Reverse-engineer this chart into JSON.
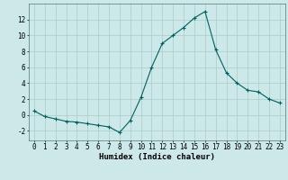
{
  "x": [
    0,
    1,
    2,
    3,
    4,
    5,
    6,
    7,
    8,
    9,
    10,
    11,
    12,
    13,
    14,
    15,
    16,
    17,
    18,
    19,
    20,
    21,
    22,
    23
  ],
  "y": [
    0.5,
    -0.2,
    -0.5,
    -0.8,
    -0.9,
    -1.1,
    -1.3,
    -1.5,
    -2.2,
    -0.7,
    2.2,
    6.0,
    9.0,
    10.0,
    11.0,
    12.2,
    13.0,
    8.2,
    5.3,
    4.0,
    3.1,
    2.9,
    2.0,
    1.5
  ],
  "line_color": "#006060",
  "marker": "+",
  "marker_size": 3,
  "bg_color": "#cce8e8",
  "grid_color": "#aacccc",
  "xlabel": "Humidex (Indice chaleur)",
  "xlim": [
    -0.5,
    23.5
  ],
  "ylim": [
    -3.2,
    14.0
  ],
  "yticks": [
    -2,
    0,
    2,
    4,
    6,
    8,
    10,
    12
  ],
  "xticks": [
    0,
    1,
    2,
    3,
    4,
    5,
    6,
    7,
    8,
    9,
    10,
    11,
    12,
    13,
    14,
    15,
    16,
    17,
    18,
    19,
    20,
    21,
    22,
    23
  ],
  "tick_fontsize": 5.5,
  "label_fontsize": 6.5
}
